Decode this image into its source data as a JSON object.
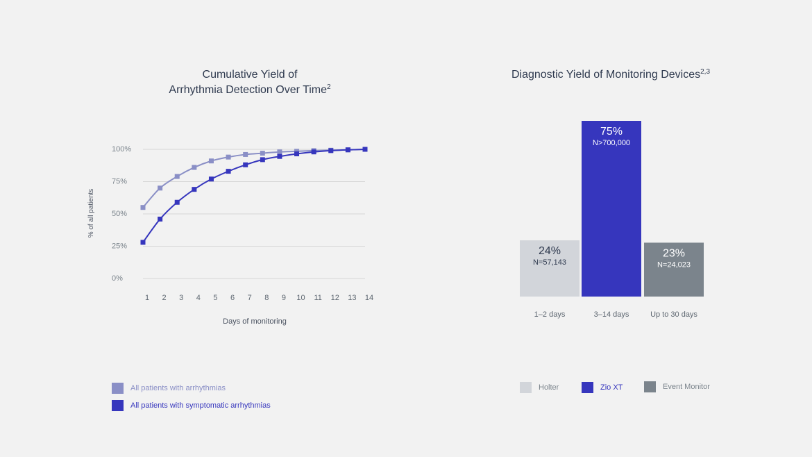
{
  "chart_data": [
    {
      "type": "line",
      "title_line1": "Cumulative Yield of",
      "title_line2": "Arrhythmia Detection Over Time",
      "title_sup": "2",
      "xlabel": "Days of monitoring",
      "ylabel": "% of all patients",
      "x": [
        1,
        2,
        3,
        4,
        5,
        6,
        7,
        8,
        9,
        10,
        11,
        12,
        13,
        14
      ],
      "x_tick_labels": [
        "1",
        "2",
        "3",
        "4",
        "5",
        "6",
        "7",
        "8",
        "9",
        "10",
        "11",
        "12",
        "13",
        "14"
      ],
      "y_ticks": [
        0,
        25,
        50,
        75,
        100
      ],
      "y_tick_labels": [
        "0%",
        "25%",
        "50%",
        "75%",
        "100%"
      ],
      "ylim": [
        0,
        100
      ],
      "grid": true,
      "series": [
        {
          "name": "All patients with arrhythmias",
          "color": "#8a8fc6",
          "values": [
            55,
            70,
            79,
            86,
            91,
            94,
            96,
            97,
            98,
            98.5,
            99,
            99.3,
            99.6,
            100
          ]
        },
        {
          "name": "All patients with symptomatic arrhythmias",
          "color": "#3636bd",
          "values": [
            28,
            46,
            59,
            69,
            77,
            83,
            88,
            92,
            94.5,
            96.5,
            98,
            99,
            99.6,
            100
          ]
        }
      ]
    },
    {
      "type": "bar",
      "title": "Diagnostic Yield of Monitoring Devices",
      "title_sup": "2,3",
      "categories": [
        "1–2 days",
        "3–14 days",
        "Up to 30 days"
      ],
      "values": [
        24,
        75,
        23
      ],
      "value_labels": [
        "24%",
        "75%",
        "23%"
      ],
      "n_labels": [
        "N=57,143",
        "N>700,000",
        "N=24,023"
      ],
      "series_names": [
        "Holter",
        "Zio XT",
        "Event Monitor"
      ],
      "colors": [
        "#d2d5da",
        "#3636bd",
        "#7b848c"
      ],
      "label_colors": [
        "#2f3a4f",
        "#ffffff",
        "#ffffff"
      ],
      "legend_text_colors": [
        "#7b848c",
        "#3636bd",
        "#7b848c"
      ],
      "ylim": [
        0,
        75
      ]
    }
  ]
}
